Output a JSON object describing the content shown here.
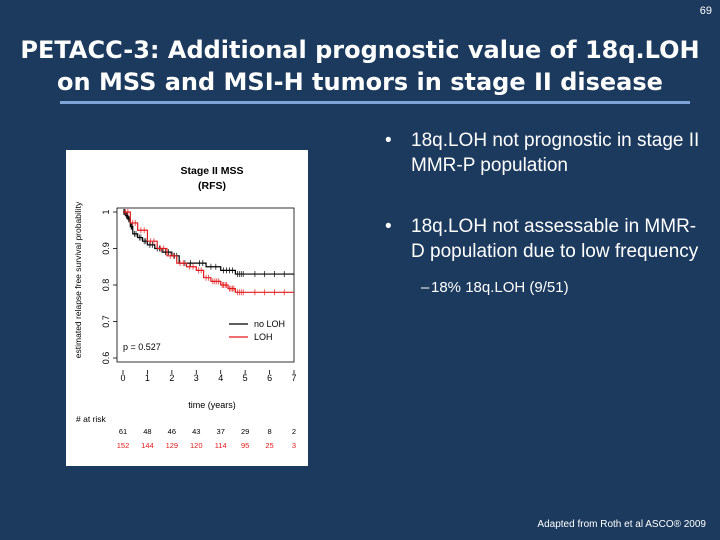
{
  "slide_number": "69",
  "title": {
    "line1": "PETACC-3: Additional prognostic value of 18q.LOH",
    "line2": "on MSS and MSI-H tumors in stage II disease"
  },
  "bullets": [
    "18q.LOH not prognostic in stage II MMR-P population",
    "18q.LOH not assessable in MMR-D population due to low frequency"
  ],
  "sub_bullet": "18% 18q.LOH (9/51)",
  "footnote": "Adapted from Roth et al ASCO® 2009",
  "colors": {
    "background": "#1c3a5e",
    "no_loh": "#000000",
    "loh": "#e31a1c",
    "title_rule": "#7ea3d6"
  },
  "chart_data": {
    "type": "line",
    "title": "Stage II MSS\n(RFS)",
    "title_lines": [
      "Stage II MSS",
      "(RFS)"
    ],
    "xlabel": "time (years)",
    "ylabel": "estimated relapse free survival probability",
    "xlim": [
      0,
      7
    ],
    "ylim": [
      0.6,
      1.0
    ],
    "x_ticks": [
      0,
      1,
      2,
      3,
      4,
      5,
      6,
      7
    ],
    "y_ticks": [
      1,
      0.9,
      0.8,
      0.7,
      0.6
    ],
    "y_tick_labels": [
      "1",
      "0.9",
      "0.8",
      "0.7",
      "0.6"
    ],
    "annotation": "p = 0.527",
    "legend_position": "bottom-right",
    "series": [
      {
        "name": "no LOH",
        "color": "#000000",
        "x": [
          0,
          0.1,
          0.2,
          0.3,
          0.4,
          0.6,
          0.8,
          1.0,
          1.3,
          1.6,
          2.0,
          2.3,
          3.0,
          3.4,
          4.0,
          4.6,
          5.0,
          7.0
        ],
        "y": [
          1.0,
          0.99,
          0.98,
          0.96,
          0.94,
          0.93,
          0.92,
          0.91,
          0.9,
          0.89,
          0.88,
          0.86,
          0.86,
          0.85,
          0.84,
          0.83,
          0.83,
          0.83
        ]
      },
      {
        "name": "LOH",
        "color": "#e31a1c",
        "x": [
          0,
          0.3,
          0.6,
          1.0,
          1.4,
          1.8,
          2.2,
          2.6,
          3.0,
          3.3,
          3.6,
          4.0,
          4.3,
          4.6,
          5.0,
          7.0
        ],
        "y": [
          1.0,
          0.97,
          0.95,
          0.92,
          0.9,
          0.88,
          0.86,
          0.85,
          0.84,
          0.82,
          0.81,
          0.8,
          0.79,
          0.78,
          0.78,
          0.78
        ]
      }
    ],
    "risk_table": {
      "label": "# at risk",
      "rows": [
        {
          "name": "no LOH",
          "color": "#000000",
          "values": [
            61,
            48,
            46,
            43,
            37,
            29,
            8,
            2
          ]
        },
        {
          "name": "LOH",
          "color": "#e31a1c",
          "values": [
            152,
            144,
            129,
            120,
            114,
            95,
            25,
            3
          ]
        }
      ]
    }
  }
}
